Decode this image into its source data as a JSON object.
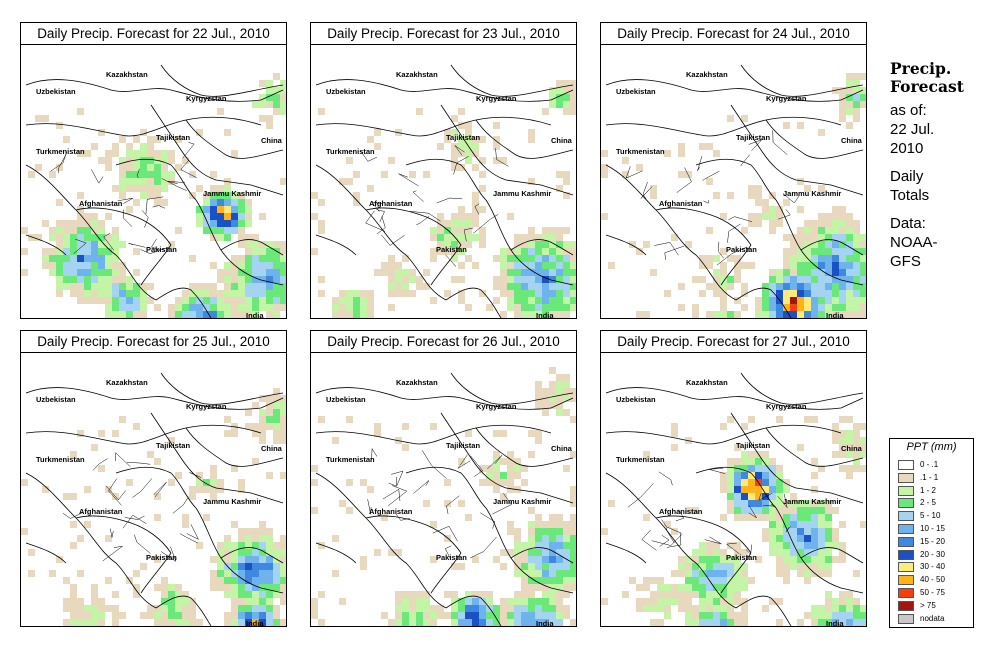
{
  "side_header": {
    "title_line1": "Precip.",
    "title_line2": "Forecast",
    "as_of_label": "as of:",
    "date_line1": "22 Jul.",
    "date_line2": "2010",
    "totals_line1": "Daily",
    "totals_line2": "Totals",
    "data_label": "Data:",
    "source_line1": "NOAA-",
    "source_line2": "GFS"
  },
  "panels": [
    {
      "title": "Daily Precip. Forecast for  22 Jul., 2010"
    },
    {
      "title": "Daily Precip. Forecast for  23 Jul., 2010"
    },
    {
      "title": "Daily Precip. Forecast for  24 Jul., 2010"
    },
    {
      "title": "Daily Precip. Forecast for  25 Jul., 2010"
    },
    {
      "title": "Daily Precip. Forecast for  26 Jul., 2010"
    },
    {
      "title": "Daily Precip. Forecast for  27 Jul., 2010"
    }
  ],
  "countries": {
    "uzbekistan": "Uzbekistan",
    "kazakhstan": "Kazakhstan",
    "kyrgyzstan": "Kyrgyzstan",
    "tajikistan": "Tajikistan",
    "turkmenistan": "Turkmenistan",
    "china": "China",
    "afghanistan": "Afghanistan",
    "jammu_kashmir": "Jammu Kashmir",
    "pakistan": "Pakistan",
    "india": "India"
  },
  "legend": {
    "title": "PPT (mm)",
    "items": [
      {
        "label": "0 - .1",
        "color": "#ffffff"
      },
      {
        "label": ".1 - 1",
        "color": "#e8d8bd"
      },
      {
        "label": "1 - 2",
        "color": "#c4f5a6"
      },
      {
        "label": "2 - 5",
        "color": "#6be87a"
      },
      {
        "label": "5 - 10",
        "color": "#a4d4f2"
      },
      {
        "label": "10 - 15",
        "color": "#6fb3ec"
      },
      {
        "label": "15 - 20",
        "color": "#3f88e0"
      },
      {
        "label": "20 - 30",
        "color": "#1a52c6"
      },
      {
        "label": "30 - 40",
        "color": "#ffea7a"
      },
      {
        "label": "40 - 50",
        "color": "#ffb21a"
      },
      {
        "label": "50 - 75",
        "color": "#f2400f"
      },
      {
        "label": "> 75",
        "color": "#a3160d"
      },
      {
        "label": "nodata",
        "color": "#c8c8c8"
      }
    ]
  }
}
